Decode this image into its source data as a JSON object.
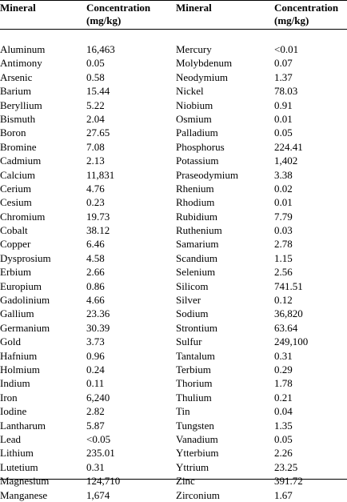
{
  "headers": {
    "mineral_left": "Mineral",
    "conc_left_line1": "Concentration",
    "conc_left_line2": "(mg/kg)",
    "mineral_right": "Mineral",
    "conc_right_line1": "Concentration",
    "conc_right_line2": "(mg/kg)"
  },
  "left": [
    {
      "mineral": "Aluminum",
      "value": "16,463"
    },
    {
      "mineral": "Antimony",
      "value": "0.05"
    },
    {
      "mineral": "Arsenic",
      "value": "0.58"
    },
    {
      "mineral": "Barium",
      "value": "15.44"
    },
    {
      "mineral": "Beryllium",
      "value": "5.22"
    },
    {
      "mineral": "Bismuth",
      "value": "2.04"
    },
    {
      "mineral": "Boron",
      "value": "27.65"
    },
    {
      "mineral": "Bromine",
      "value": "7.08"
    },
    {
      "mineral": "Cadmium",
      "value": "2.13"
    },
    {
      "mineral": "Calcium",
      "value": "11,831"
    },
    {
      "mineral": "Cerium",
      "value": "4.76"
    },
    {
      "mineral": "Cesium",
      "value": "0.23"
    },
    {
      "mineral": "Chromium",
      "value": "19.73"
    },
    {
      "mineral": "Cobalt",
      "value": "38.12"
    },
    {
      "mineral": "Copper",
      "value": "6.46"
    },
    {
      "mineral": "Dysprosium",
      "value": "4.58"
    },
    {
      "mineral": "Erbium",
      "value": "2.66"
    },
    {
      "mineral": "Europium",
      "value": "0.86"
    },
    {
      "mineral": "Gadolinium",
      "value": "4.66"
    },
    {
      "mineral": "Gallium",
      "value": "23.36"
    },
    {
      "mineral": "Germanium",
      "value": "30.39"
    },
    {
      "mineral": "Gold",
      "value": "3.73"
    },
    {
      "mineral": "Hafnium",
      "value": "0.96"
    },
    {
      "mineral": "Holmium",
      "value": "0.24"
    },
    {
      "mineral": "Indium",
      "value": "0.11"
    },
    {
      "mineral": "Iron",
      "value": "6,240"
    },
    {
      "mineral": "Iodine",
      "value": "2.82"
    },
    {
      "mineral": "Lantharum",
      "value": "5.87"
    },
    {
      "mineral": "Lead",
      "value": "<0.05"
    },
    {
      "mineral": "Lithium",
      "value": "235.01"
    },
    {
      "mineral": "Lutetium",
      "value": "0.31"
    },
    {
      "mineral": "Magnesium",
      "value": "124,710"
    },
    {
      "mineral": "Manganese",
      "value": "1,674"
    }
  ],
  "right": [
    {
      "mineral": "Mercury",
      "value": "<0.01"
    },
    {
      "mineral": "Molybdenum",
      "value": "0.07"
    },
    {
      "mineral": "Neodymium",
      "value": "1.37"
    },
    {
      "mineral": "Nickel",
      "value": "78.03"
    },
    {
      "mineral": "Niobium",
      "value": "0.91"
    },
    {
      "mineral": "Osmium",
      "value": "0.01"
    },
    {
      "mineral": "Palladium",
      "value": "0.05"
    },
    {
      "mineral": "Phosphorus",
      "value": "224.41"
    },
    {
      "mineral": "Potassium",
      "value": "1,402"
    },
    {
      "mineral": "Praseodymium",
      "value": "3.38"
    },
    {
      "mineral": "Rhenium",
      "value": "0.02"
    },
    {
      "mineral": "Rhodium",
      "value": "0.01"
    },
    {
      "mineral": "Rubidium",
      "value": "7.79"
    },
    {
      "mineral": "Ruthenium",
      "value": "0.03"
    },
    {
      "mineral": "Samarium",
      "value": "2.78"
    },
    {
      "mineral": "Scandium",
      "value": "1.15"
    },
    {
      "mineral": "Selenium",
      "value": "2.56"
    },
    {
      "mineral": "Silicom",
      "value": "741.51"
    },
    {
      "mineral": "Silver",
      "value": "0.12"
    },
    {
      "mineral": "Sodium",
      "value": "36,820"
    },
    {
      "mineral": "Strontium",
      "value": "63.64"
    },
    {
      "mineral": "Sulfur",
      "value": "249,100"
    },
    {
      "mineral": "Tantalum",
      "value": "0.31"
    },
    {
      "mineral": "Terbium",
      "value": "0.29"
    },
    {
      "mineral": "Thorium",
      "value": "1.78"
    },
    {
      "mineral": "Thulium",
      "value": "0.21"
    },
    {
      "mineral": "Tin",
      "value": "0.04"
    },
    {
      "mineral": "Tungsten",
      "value": "1.35"
    },
    {
      "mineral": "Vanadium",
      "value": "0.05"
    },
    {
      "mineral": "Ytterbium",
      "value": "2.26"
    },
    {
      "mineral": "Yttrium",
      "value": "23.25"
    },
    {
      "mineral": "Zinc",
      "value": "391.72"
    },
    {
      "mineral": "Zirconium",
      "value": "1.67"
    }
  ]
}
